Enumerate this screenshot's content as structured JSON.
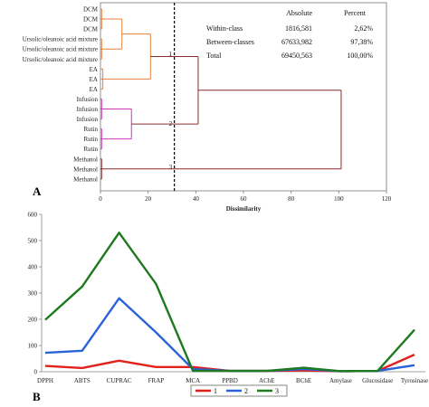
{
  "panels": [
    "A",
    "B"
  ],
  "chart_data": [
    {
      "type": "dendrogram",
      "xlabel": "Dissimilarity",
      "xlim": [
        0,
        120
      ],
      "xticks": [
        0,
        20,
        40,
        60,
        80,
        100,
        120
      ],
      "grid": false,
      "truncation_line_x": 31,
      "leaves": [
        "DCM",
        "DCM",
        "DCM",
        "Ursolic/oleanoic acid mixture",
        "Ursolic/oleanoic acid mixture",
        "Ursolic/oleanoic acid mixture",
        "EA",
        "EA",
        "EA",
        "Infusion",
        "Infusion",
        "Infusion",
        "Rutin",
        "Rutin",
        "Rutin",
        "Methanol",
        "Methanol",
        "Methanol"
      ],
      "clusters": [
        {
          "label": "1",
          "color": "#e8803d",
          "leaves": [
            0,
            1,
            2,
            3,
            4,
            5,
            6,
            7,
            8
          ]
        },
        {
          "label": "2",
          "color": "#c838b8",
          "leaves": [
            9,
            10,
            11,
            12,
            13,
            14
          ]
        },
        {
          "label": "3",
          "color": "#8b2c2c",
          "leaves": [
            15,
            16,
            17
          ]
        }
      ],
      "merges": [
        {
          "leaves": [
            0,
            1,
            2
          ],
          "height": 0.5,
          "color": "#e8803d"
        },
        {
          "leaves": [
            3,
            4,
            5
          ],
          "height": 0.5,
          "color": "#e8803d"
        },
        {
          "leaves": [
            6,
            7,
            8
          ],
          "height": 1.0,
          "color": "#e8803d"
        },
        {
          "leaves": [
            9,
            10,
            11
          ],
          "height": 0.5,
          "color": "#c838b8"
        },
        {
          "leaves": [
            12,
            13,
            14
          ],
          "height": 0.5,
          "color": "#c838b8"
        },
        {
          "leaves": [
            15,
            16,
            17
          ],
          "height": 0.5,
          "color": "#8b2c2c"
        },
        {
          "children": [
            0,
            1
          ],
          "height": 9,
          "color": "#e8803d"
        },
        {
          "children": [
            6,
            2
          ],
          "height": 21,
          "color": "#e8803d"
        },
        {
          "children": [
            3,
            4
          ],
          "height": 13,
          "color": "#c838b8"
        },
        {
          "children": [
            7,
            8
          ],
          "height": 41,
          "color": "#8b2c2c"
        },
        {
          "children": [
            9,
            5
          ],
          "height": 101,
          "color": "#8b2c2c"
        }
      ],
      "table": {
        "headers": [
          "",
          "Absolute",
          "Percent"
        ],
        "rows": [
          [
            "Within-class",
            "1816,581",
            "2,62%"
          ],
          [
            "Between-classes",
            "67633,982",
            "97,38%"
          ],
          [
            "Total",
            "69450,563",
            "100,00%"
          ]
        ]
      }
    },
    {
      "type": "line",
      "categories": [
        "DPPH",
        "ABTS",
        "CUPRAC",
        "FRAP",
        "MCA",
        "PPBD",
        "AChE",
        "BChE",
        "Amylase",
        "Glucosidase",
        "Tyrosinase"
      ],
      "ylim": [
        0,
        600
      ],
      "yticks": [
        0,
        100,
        200,
        300,
        400,
        500,
        600
      ],
      "grid": false,
      "legend_position": "bottom-center",
      "series": [
        {
          "name": "1",
          "color": "#e0211c",
          "values": [
            22,
            14,
            42,
            18,
            18,
            3,
            3,
            5,
            2,
            3,
            65
          ]
        },
        {
          "name": "2",
          "color": "#2a62d8",
          "values": [
            72,
            80,
            280,
            150,
            10,
            3,
            3,
            10,
            2,
            3,
            25
          ]
        },
        {
          "name": "3",
          "color": "#1e7a1e",
          "values": [
            198,
            325,
            530,
            335,
            3,
            3,
            3,
            15,
            2,
            3,
            160
          ]
        }
      ]
    }
  ]
}
